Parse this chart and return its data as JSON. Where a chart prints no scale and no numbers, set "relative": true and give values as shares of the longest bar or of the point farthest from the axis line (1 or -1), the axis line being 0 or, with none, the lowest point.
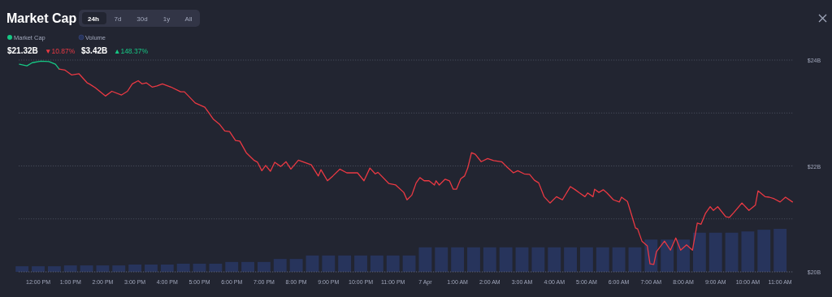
{
  "chart_data": [
    {
      "type": "line",
      "title": "Market Cap",
      "legend": "top left",
      "grid": "y",
      "annotations": [
        "24h",
        "7d",
        "30d",
        "1y",
        "All",
        "$21.32B",
        "▼10.87%",
        "$3.42B",
        "▲148.37%"
      ],
      "xlim": [
        "--04-06T11:24",
        "--04-07T11:24"
      ],
      "ylim": [
        20,
        24
      ],
      "yticks": [
        {
          "value": 20,
          "label": "$20B"
        },
        {
          "value": 21,
          "label": null
        },
        {
          "value": 22,
          "label": "$22B"
        },
        {
          "value": 23,
          "label": null
        },
        {
          "value": 24,
          "label": "$24B"
        }
      ],
      "xticks": [
        {
          "value": "--04-06T12:00",
          "label": "12:00 PM"
        },
        {
          "value": "--04-06T13:00",
          "label": "1:00 PM"
        },
        {
          "value": "--04-06T14:00",
          "label": "2:00 PM"
        },
        {
          "value": "--04-06T15:00",
          "label": "3:00 PM"
        },
        {
          "value": "--04-06T16:00",
          "label": "4:00 PM"
        },
        {
          "value": "--04-06T17:00",
          "label": "5:00 PM"
        },
        {
          "value": "--04-06T18:00",
          "label": "6:00 PM"
        },
        {
          "value": "--04-06T19:00",
          "label": "7:00 PM"
        },
        {
          "value": "--04-06T20:00",
          "label": "8:00 PM"
        },
        {
          "value": "--04-06T21:00",
          "label": "9:00 PM"
        },
        {
          "value": "--04-06T22:00",
          "label": "10:00 PM"
        },
        {
          "value": "--04-06T23:00",
          "label": "11:00 PM"
        },
        {
          "value": "--04-07",
          "label": "7 Apr"
        },
        {
          "value": "--04-07T01:00",
          "label": "1:00 AM"
        },
        {
          "value": "--04-07T02:00",
          "label": "2:00 AM"
        },
        {
          "value": "--04-07T03:00",
          "label": "3:00 AM"
        },
        {
          "value": "--04-07T04:00",
          "label": "4:00 AM"
        },
        {
          "value": "--04-07T05:00",
          "label": "5:00 AM"
        },
        {
          "value": "--04-07T06:00",
          "label": "6:00 AM"
        },
        {
          "value": "--04-07T07:00",
          "label": "7:00 AM"
        },
        {
          "value": "--04-07T08:00",
          "label": "8:00 AM"
        },
        {
          "value": "--04-07T09:00",
          "label": "9:00 AM"
        },
        {
          "value": "--04-07T10:00",
          "label": "10:00 AM"
        },
        {
          "value": "--04-07T11:00",
          "label": "11:00 AM"
        }
      ],
      "series": [
        {
          "name": "Market Cap",
          "color": "#16c784",
          "x": [
            "--04-06T11:25",
            "--04-06T11:39",
            "--04-06T11:49",
            "--04-06T12:05",
            "--04-06T12:20",
            "--04-06T12:32",
            "--04-06T12:39"
          ],
          "values": [
            23.92,
            23.89,
            23.95,
            23.98,
            23.97,
            23.92,
            23.83
          ]
        },
        {
          "color": "#ea3943",
          "x": [
            "--04-06T12:39",
            "--04-06T12:50",
            "--04-06T13:02",
            "--04-06T13:16",
            "--04-06T13:31",
            "--04-06T13:35",
            "--04-06T13:46",
            "--04-06T14:05",
            "--04-06T14:17",
            "--04-06T14:35",
            "--04-06T14:46",
            "--04-06T14:55",
            "--04-06T15:06",
            "--04-06T15:13",
            "--04-06T15:21",
            "--04-06T15:32",
            "--04-06T15:41",
            "--04-06T15:51",
            "--04-06T16:07",
            "--04-06T16:25",
            "--04-06T16:32",
            "--04-06T16:52",
            "--04-06T17:10",
            "--04-06T17:26",
            "--04-06T17:37",
            "--04-06T17:47",
            "--04-06T17:56",
            "--04-06T18:07",
            "--04-06T18:15",
            "--04-06T18:27",
            "--04-06T18:41",
            "--04-06T18:48",
            "--04-06T18:56",
            "--04-06T19:03",
            "--04-06T19:12",
            "--04-06T19:20",
            "--04-06T19:31",
            "--04-06T19:41",
            "--04-06T19:50",
            "--04-06T20:04",
            "--04-06T20:28",
            "--04-06T20:41",
            "--04-06T20:46",
            "--04-06T20:58",
            "--04-06T21:08",
            "--04-06T21:21",
            "--04-06T21:34",
            "--04-06T21:54",
            "--04-06T22:06",
            "--04-06T22:17",
            "--04-06T22:27",
            "--04-06T22:32",
            "--04-06T22:52",
            "--04-06T23:05",
            "--04-06T23:20",
            "--04-06T23:26",
            "--04-06T23:35",
            "--04-06T23:43",
            "--04-06T23:50",
            "--04-06T23:58",
            "--04-07T00:07",
            "--04-07T00:17",
            "--04-07T00:20",
            "--04-07T00:26",
            "--04-07T00:37",
            "--04-07T00:45",
            "--04-07T00:52",
            "--04-07T00:58",
            "--04-07T01:06",
            "--04-07T01:13",
            "--04-07T01:19",
            "--04-07T01:26",
            "--04-07T01:33",
            "--04-07T01:44",
            "--04-07T01:56",
            "--04-07T02:07",
            "--04-07T02:22",
            "--04-07T02:31",
            "--04-07T02:44",
            "--04-07T02:52",
            "--04-07T03:04",
            "--04-07T03:14",
            "--04-07T03:23",
            "--04-07T03:31",
            "--04-07T03:41",
            "--04-07T03:52",
            "--04-07T04:04",
            "--04-07T04:15",
            "--04-07T04:30",
            "--04-07T04:39",
            "--04-07T04:47",
            "--04-07T04:57",
            "--04-07T05:02",
            "--04-07T05:12",
            "--04-07T05:15",
            "--04-07T05:23",
            "--04-07T05:31",
            "--04-07T05:38",
            "--04-07T05:50",
            "--04-07T06:01",
            "--04-07T06:05",
            "--04-07T06:16",
            "--04-07T06:23",
            "--04-07T06:31",
            "--04-07T06:35",
            "--04-07T06:43",
            "--04-07T06:53",
            "--04-07T06:58",
            "--04-07T07:05",
            "--04-07T07:10",
            "--04-07T07:25",
            "--04-07T07:36",
            "--04-07T07:46",
            "--04-07T07:55",
            "--04-07T08:06",
            "--04-07T08:17",
            "--04-07T08:26",
            "--04-07T08:33",
            "--04-07T08:41",
            "--04-07T08:50",
            "--04-07T08:56",
            "--04-07T09:04",
            "--04-07T09:19",
            "--04-07T09:26",
            "--04-07T09:34",
            "--04-07T09:49",
            "--04-07T10:02",
            "--04-07T10:14",
            "--04-07T10:19",
            "--04-07T10:32",
            "--04-07T10:40",
            "--04-07T10:49",
            "--04-07T11:00",
            "--04-07T11:10",
            "--04-07T11:23"
          ],
          "values": [
            23.83,
            23.81,
            23.72,
            23.74,
            23.57,
            23.55,
            23.48,
            23.32,
            23.41,
            23.34,
            23.41,
            23.55,
            23.61,
            23.55,
            23.57,
            23.49,
            23.51,
            23.55,
            23.49,
            23.4,
            23.4,
            23.19,
            23.11,
            22.88,
            22.79,
            22.66,
            22.65,
            22.48,
            22.47,
            22.25,
            22.11,
            22.07,
            21.91,
            22.01,
            21.9,
            22.07,
            21.99,
            22.08,
            21.94,
            22.11,
            22.02,
            21.81,
            21.93,
            21.72,
            21.81,
            21.94,
            21.87,
            21.87,
            21.72,
            21.96,
            21.85,
            21.88,
            21.67,
            21.64,
            21.5,
            21.36,
            21.45,
            21.68,
            21.78,
            21.72,
            21.72,
            21.64,
            21.72,
            21.64,
            21.75,
            21.72,
            21.56,
            21.56,
            21.76,
            21.81,
            21.96,
            22.25,
            22.22,
            22.08,
            22.14,
            22.1,
            22.08,
            21.99,
            21.87,
            21.91,
            21.85,
            21.84,
            21.73,
            21.68,
            21.42,
            21.3,
            21.42,
            21.36,
            21.61,
            21.55,
            21.49,
            21.42,
            21.49,
            21.42,
            21.56,
            21.5,
            21.55,
            21.49,
            21.36,
            21.32,
            21.41,
            21.33,
            21.1,
            20.83,
            20.81,
            20.58,
            20.49,
            20.15,
            20.14,
            20.38,
            20.58,
            20.41,
            20.64,
            20.41,
            20.51,
            20.41,
            20.92,
            20.9,
            21.1,
            21.23,
            21.16,
            21.23,
            21.04,
            21.03,
            21.12,
            21.3,
            21.16,
            21.26,
            21.53,
            21.42,
            21.41,
            21.38,
            21.32,
            21.41,
            21.32
          ]
        }
      ]
    },
    {
      "type": "bar",
      "relative": true,
      "legend": "top left",
      "xlim": [
        "--04-06T11:24",
        "--04-07T11:24"
      ],
      "series": [
        {
          "name": "Volume",
          "color": "#27345c",
          "x": [
            "--04-06T11:30",
            "--04-06T12:00",
            "--04-06T12:30",
            "--04-06T13:00",
            "--04-06T13:30",
            "--04-06T14:00",
            "--04-06T14:30",
            "--04-06T15:00",
            "--04-06T15:30",
            "--04-06T16:00",
            "--04-06T16:30",
            "--04-06T17:00",
            "--04-06T17:30",
            "--04-06T18:00",
            "--04-06T18:30",
            "--04-06T19:00",
            "--04-06T19:30",
            "--04-06T20:00",
            "--04-06T20:30",
            "--04-06T21:00",
            "--04-06T21:30",
            "--04-06T22:00",
            "--04-06T22:30",
            "--04-06T23:00",
            "--04-06T23:30",
            "--04-07T00:00",
            "--04-07T00:30",
            "--04-07T01:00",
            "--04-07T01:30",
            "--04-07T02:00",
            "--04-07T02:30",
            "--04-07T03:00",
            "--04-07T03:30",
            "--04-07T04:00",
            "--04-07T04:30",
            "--04-07T05:00",
            "--04-07T05:30",
            "--04-07T06:00",
            "--04-07T06:30",
            "--04-07T07:00",
            "--04-07T07:30",
            "--04-07T08:00",
            "--04-07T08:30",
            "--04-07T09:00",
            "--04-07T09:30",
            "--04-07T10:00",
            "--04-07T10:30",
            "--04-07T11:00"
          ],
          "values": [
            0.13,
            0.13,
            0.13,
            0.15,
            0.15,
            0.15,
            0.15,
            0.17,
            0.17,
            0.17,
            0.19,
            0.19,
            0.19,
            0.23,
            0.23,
            0.23,
            0.3,
            0.3,
            0.38,
            0.38,
            0.38,
            0.38,
            0.38,
            0.38,
            0.38,
            0.57,
            0.57,
            0.57,
            0.57,
            0.57,
            0.57,
            0.57,
            0.57,
            0.57,
            0.57,
            0.57,
            0.57,
            0.57,
            0.57,
            0.75,
            0.75,
            0.75,
            0.91,
            0.91,
            0.91,
            0.94,
            0.98,
            1
          ]
        }
      ]
    }
  ]
}
